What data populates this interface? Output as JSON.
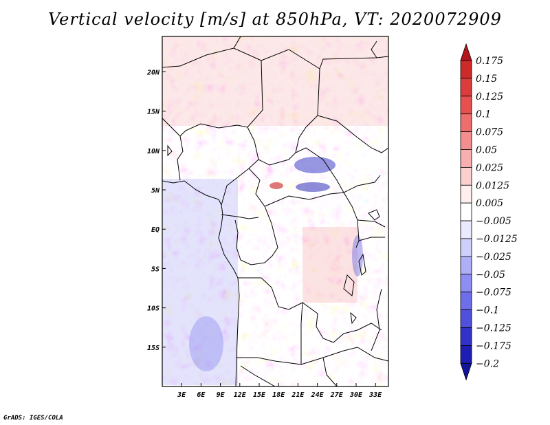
{
  "title": "Vertical velocity [m/s] at 850hPa, VT: 2020072909",
  "credit": "GrADS: IGES/COLA",
  "map": {
    "lon_range": [
      0,
      35
    ],
    "lat_range": [
      -20,
      24.5
    ],
    "lon_ticks": [
      "3E",
      "6E",
      "9E",
      "12E",
      "15E",
      "18E",
      "21E",
      "24E",
      "27E",
      "30E",
      "33E"
    ],
    "lat_ticks": [
      "20N",
      "15N",
      "10N",
      "5N",
      "EQ",
      "5S",
      "10S",
      "15S"
    ],
    "field": "vertical velocity",
    "units": "m/s",
    "pressure_level": "850hPa",
    "valid_time": "2020072909"
  },
  "colorbar": {
    "labels": [
      "0.175",
      "0.15",
      "0.125",
      "0.1",
      "0.075",
      "0.05",
      "0.025",
      "0.0125",
      "0.005",
      "-0.005",
      "-0.0125",
      "-0.025",
      "-0.05",
      "-0.075",
      "-0.1",
      "-0.125",
      "-0.175",
      "-0.2"
    ],
    "colors": [
      "#b4141c",
      "#cd2a2a",
      "#dc3c3c",
      "#e85050",
      "#ee6e6e",
      "#f48e8e",
      "#f8afaf",
      "#fccfcf",
      "#feeeee",
      "#ffffff",
      "#eaeafe",
      "#cfcffc",
      "#afaff8",
      "#8e8ef2",
      "#6e6eea",
      "#5050dc",
      "#3232c8",
      "#1e1eb4",
      "#14149a"
    ]
  }
}
